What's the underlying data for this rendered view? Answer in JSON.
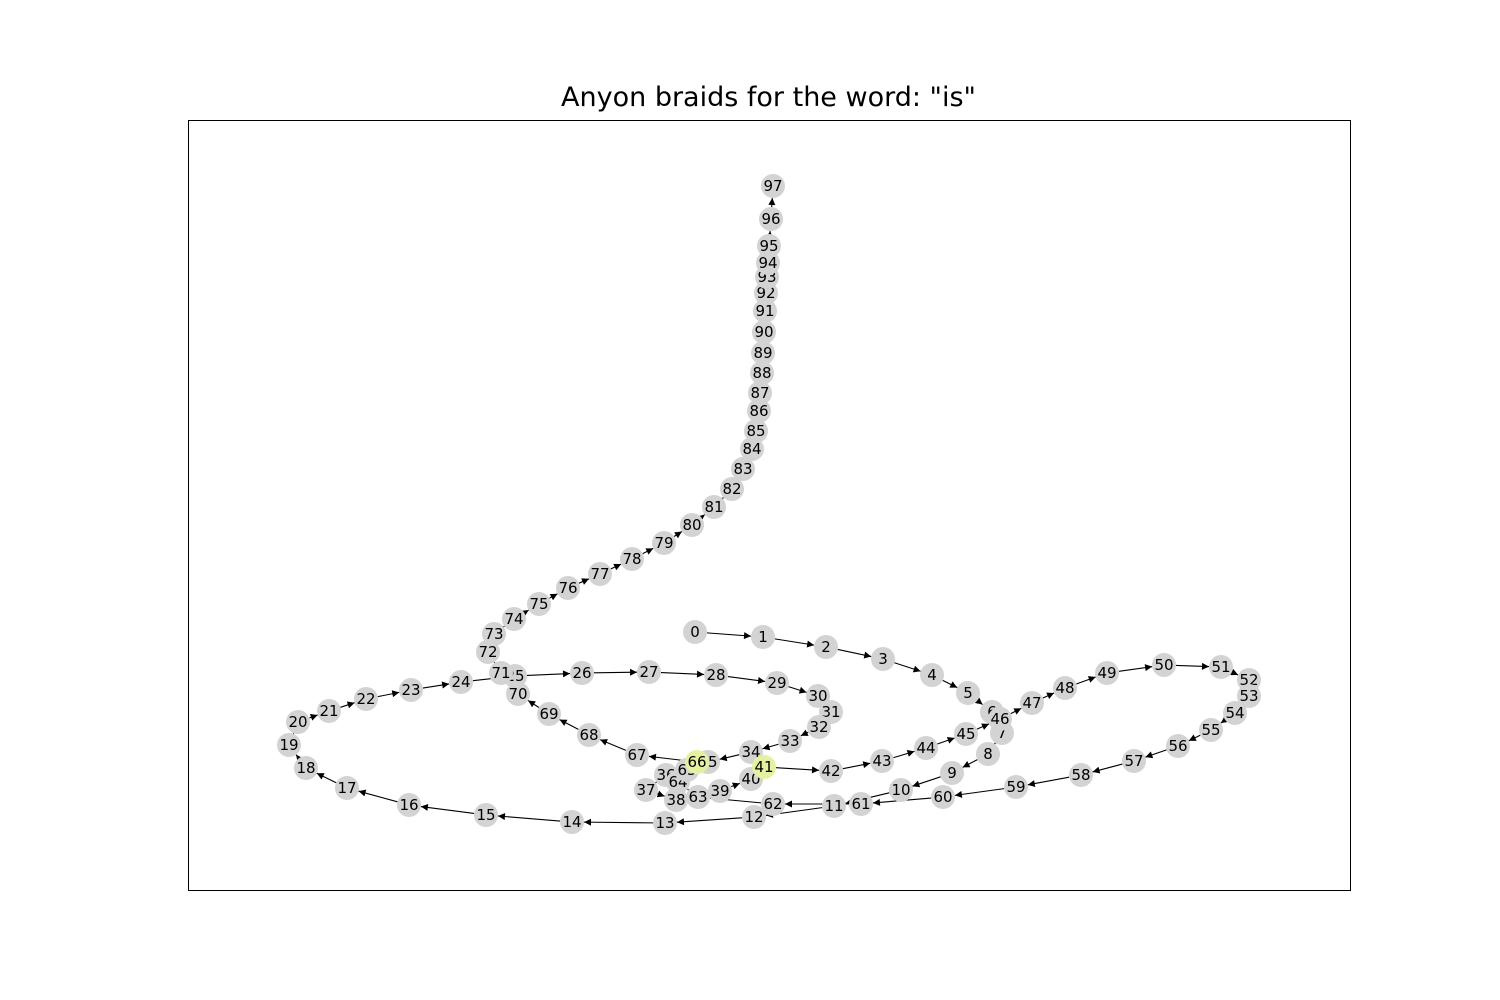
{
  "title": "Anyon braids for the word: \"is\"",
  "colors": {
    "node_default": "#d3d3d3",
    "node_highlight": "#e5f0a0",
    "edge": "#000000",
    "frame": "#000000"
  },
  "graph": {
    "highlighted_nodes": [
      "41",
      "66"
    ],
    "nodes": [
      "0",
      "1",
      "2",
      "3",
      "4",
      "5",
      "6",
      "7",
      "8",
      "9",
      "10",
      "11",
      "12",
      "13",
      "14",
      "15",
      "16",
      "17",
      "18",
      "19",
      "20",
      "21",
      "22",
      "23",
      "24",
      "25",
      "26",
      "27",
      "28",
      "29",
      "30",
      "31",
      "32",
      "33",
      "34",
      "35",
      "36",
      "37",
      "38",
      "39",
      "40",
      "41",
      "42",
      "43",
      "44",
      "45",
      "46",
      "47",
      "48",
      "49",
      "50",
      "51",
      "52",
      "53",
      "54",
      "55",
      "56",
      "57",
      "58",
      "59",
      "60",
      "61",
      "62",
      "63",
      "64",
      "65",
      "66",
      "67",
      "68",
      "69",
      "70",
      "71",
      "72",
      "73",
      "74",
      "75",
      "76",
      "77",
      "78",
      "79",
      "80",
      "81",
      "82",
      "83",
      "84",
      "85",
      "86",
      "87",
      "88",
      "89",
      "90",
      "91",
      "92",
      "93",
      "94",
      "95",
      "96",
      "97"
    ],
    "edges": [
      [
        "0",
        "1"
      ],
      [
        "1",
        "2"
      ],
      [
        "2",
        "3"
      ],
      [
        "3",
        "4"
      ],
      [
        "4",
        "5"
      ],
      [
        "5",
        "6"
      ],
      [
        "6",
        "7"
      ],
      [
        "7",
        "8"
      ],
      [
        "8",
        "9"
      ],
      [
        "9",
        "10"
      ],
      [
        "10",
        "11"
      ],
      [
        "11",
        "12"
      ],
      [
        "12",
        "13"
      ],
      [
        "13",
        "14"
      ],
      [
        "14",
        "15"
      ],
      [
        "15",
        "16"
      ],
      [
        "16",
        "17"
      ],
      [
        "17",
        "18"
      ],
      [
        "18",
        "19"
      ],
      [
        "19",
        "20"
      ],
      [
        "20",
        "21"
      ],
      [
        "21",
        "22"
      ],
      [
        "22",
        "23"
      ],
      [
        "23",
        "24"
      ],
      [
        "24",
        "25"
      ],
      [
        "25",
        "26"
      ],
      [
        "26",
        "27"
      ],
      [
        "27",
        "28"
      ],
      [
        "28",
        "29"
      ],
      [
        "29",
        "30"
      ],
      [
        "30",
        "31"
      ],
      [
        "31",
        "32"
      ],
      [
        "32",
        "33"
      ],
      [
        "33",
        "34"
      ],
      [
        "34",
        "35"
      ],
      [
        "35",
        "36"
      ],
      [
        "36",
        "37"
      ],
      [
        "37",
        "38"
      ],
      [
        "38",
        "39"
      ],
      [
        "39",
        "40"
      ],
      [
        "40",
        "41"
      ],
      [
        "41",
        "42"
      ],
      [
        "42",
        "43"
      ],
      [
        "43",
        "44"
      ],
      [
        "44",
        "45"
      ],
      [
        "45",
        "46"
      ],
      [
        "46",
        "47"
      ],
      [
        "47",
        "48"
      ],
      [
        "48",
        "49"
      ],
      [
        "49",
        "50"
      ],
      [
        "50",
        "51"
      ],
      [
        "51",
        "52"
      ],
      [
        "52",
        "53"
      ],
      [
        "53",
        "54"
      ],
      [
        "54",
        "55"
      ],
      [
        "55",
        "56"
      ],
      [
        "56",
        "57"
      ],
      [
        "57",
        "58"
      ],
      [
        "58",
        "59"
      ],
      [
        "59",
        "60"
      ],
      [
        "60",
        "61"
      ],
      [
        "61",
        "62"
      ],
      [
        "62",
        "63"
      ],
      [
        "63",
        "64"
      ],
      [
        "64",
        "65"
      ],
      [
        "65",
        "66"
      ],
      [
        "66",
        "67"
      ],
      [
        "67",
        "68"
      ],
      [
        "68",
        "69"
      ],
      [
        "69",
        "70"
      ],
      [
        "70",
        "71"
      ],
      [
        "71",
        "72"
      ],
      [
        "72",
        "73"
      ],
      [
        "73",
        "74"
      ],
      [
        "74",
        "75"
      ],
      [
        "75",
        "76"
      ],
      [
        "76",
        "77"
      ],
      [
        "77",
        "78"
      ],
      [
        "78",
        "79"
      ],
      [
        "79",
        "80"
      ],
      [
        "80",
        "81"
      ],
      [
        "81",
        "82"
      ],
      [
        "82",
        "83"
      ],
      [
        "83",
        "84"
      ],
      [
        "84",
        "85"
      ],
      [
        "85",
        "86"
      ],
      [
        "86",
        "87"
      ],
      [
        "87",
        "88"
      ],
      [
        "88",
        "89"
      ],
      [
        "89",
        "90"
      ],
      [
        "90",
        "91"
      ],
      [
        "91",
        "92"
      ],
      [
        "92",
        "93"
      ],
      [
        "93",
        "94"
      ],
      [
        "94",
        "95"
      ],
      [
        "95",
        "96"
      ],
      [
        "96",
        "97"
      ]
    ]
  }
}
